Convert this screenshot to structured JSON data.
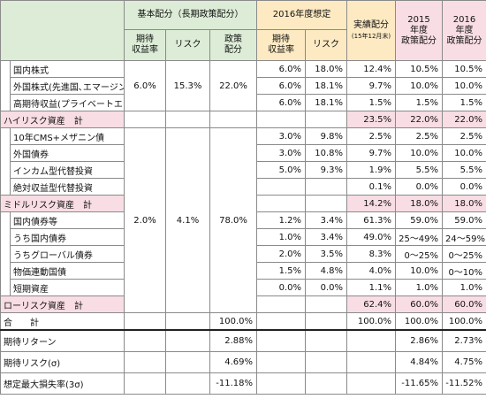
{
  "header": {
    "basic_group": "基本配分（長期政策配分）",
    "assumption_group": "2016年度想定",
    "actual": {
      "title": "実績配分",
      "note": "(15年12月末)"
    },
    "p2015": "2015\n年度\n政策配分",
    "p2016": "2016\n年度\n政策配分",
    "basic_cols": [
      "期待\n収益率",
      "リスク",
      "政策\n配分"
    ],
    "assumption_cols": [
      "期待\n収益率",
      "リスク"
    ]
  },
  "sections": [
    {
      "basic": [
        "6.0%",
        "15.3%",
        "22.0%"
      ],
      "rows": [
        {
          "label": "国内株式",
          "exp16": "6.0%",
          "risk16": "18.0%",
          "actual": "12.4%",
          "p2015": "10.5%",
          "p2016": "10.5%"
        },
        {
          "label": "外国株式(先進国､エマージング)",
          "exp16": "6.0%",
          "risk16": "18.1%",
          "actual": "9.7%",
          "p2015": "10.0%",
          "p2016": "10.0%"
        },
        {
          "label": "高期待収益(プライベートエクイティ)",
          "exp16": "6.0%",
          "risk16": "18.1%",
          "actual": "1.5%",
          "p2015": "1.5%",
          "p2016": "1.5%"
        }
      ]
    },
    {
      "rows": [
        {
          "kind": "subtotal",
          "label": "ハイリスク資産　計",
          "actual": "23.5%",
          "p2015": "22.0%",
          "p2016": "22.0%"
        }
      ]
    },
    {
      "basic": [
        "2.0%",
        "4.1%",
        "78.0%"
      ],
      "rows": [
        {
          "label": "10年CMS+メザニン債",
          "exp16": "3.0%",
          "risk16": "9.8%",
          "actual": "2.5%",
          "p2015": "2.5%",
          "p2016": "2.5%"
        },
        {
          "label": "外国債券",
          "exp16": "3.0%",
          "risk16": "10.8%",
          "actual": "9.7%",
          "p2015": "10.0%",
          "p2016": "10.0%"
        },
        {
          "label": "インカム型代替投資",
          "exp16": "5.0%",
          "risk16": "9.3%",
          "actual": "1.9%",
          "p2015": "5.5%",
          "p2016": "5.5%"
        },
        {
          "label": "絶対収益型代替投資",
          "actual": "0.1%",
          "p2015": "0.0%",
          "p2016": "0.0%"
        },
        {
          "kind": "subtotal",
          "label": "ミドルリスク資産　計",
          "actual": "14.2%",
          "p2015": "18.0%",
          "p2016": "18.0%"
        },
        {
          "label": "国内債券等",
          "exp16": "1.2%",
          "risk16": "3.4%",
          "actual": "61.3%",
          "p2015": "59.0%",
          "p2016": "59.0%"
        },
        {
          "label": "うち国内債券",
          "exp16": "1.0%",
          "risk16": "3.4%",
          "actual": "49.0%",
          "p2015": "25～49%",
          "p2016": "24～59%"
        },
        {
          "label": "うちグローバル債券",
          "exp16": "2.0%",
          "risk16": "3.5%",
          "actual": "8.3%",
          "p2015": "0～25%",
          "p2016": "0～25%"
        },
        {
          "label": "物価連動国債",
          "exp16": "1.5%",
          "risk16": "4.8%",
          "actual": "4.0%",
          "p2015": "10.0%",
          "p2016": "0～10%"
        },
        {
          "label": "短期資産",
          "exp16": "0.0%",
          "risk16": "0.0%",
          "actual": "1.1%",
          "p2015": "1.0%",
          "p2016": "1.0%"
        },
        {
          "kind": "subtotal",
          "label": "ローリスク資産　計",
          "actual": "62.4%",
          "p2015": "60.0%",
          "p2016": "60.0%"
        }
      ]
    }
  ],
  "total": {
    "label": "合　　計",
    "policy": "100.0%",
    "actual": "100.0%",
    "p2015": "100.0%",
    "p2016": "100.0%"
  },
  "stats": [
    {
      "label": "期待リターン",
      "policy": "2.88%",
      "p2015": "2.86%",
      "p2016": "2.73%"
    },
    {
      "label": "期待リスク(σ)",
      "policy": "4.69%",
      "p2015": "4.84%",
      "p2016": "4.75%"
    },
    {
      "label": "想定最大損失率(3σ)",
      "policy": "-11.18%",
      "p2015": "-11.65%",
      "p2016": "-11.52%"
    }
  ]
}
